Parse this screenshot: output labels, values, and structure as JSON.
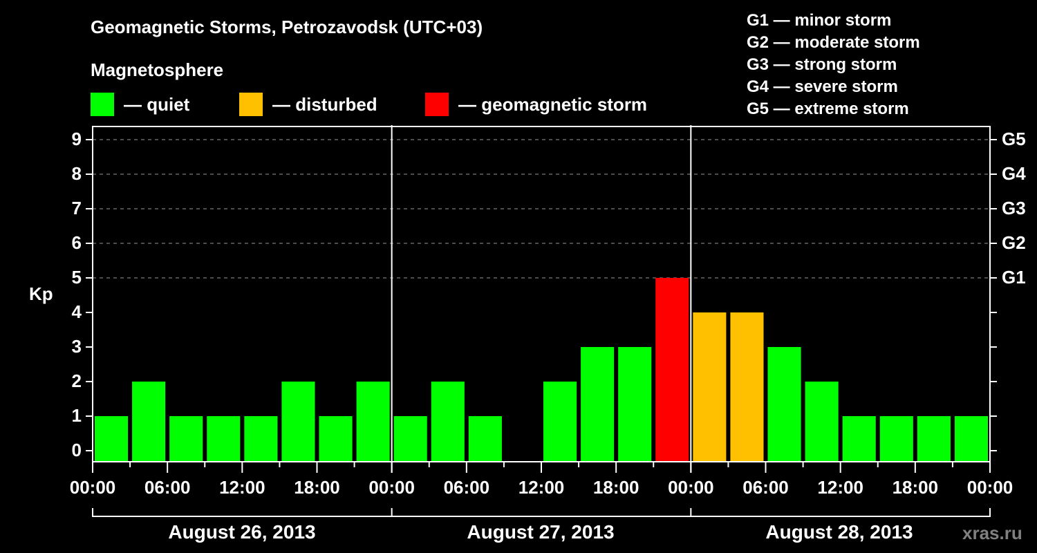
{
  "header": {
    "title": "Geomagnetic Storms, Petrozavodsk (UTC+03)",
    "subtitle": "Magnetosphere"
  },
  "legend": {
    "items": [
      {
        "label": "— quiet",
        "color": "#00ff00"
      },
      {
        "label": "— disturbed",
        "color": "#ffc000"
      },
      {
        "label": "— geomagnetic storm",
        "color": "#ff0000"
      }
    ]
  },
  "storm_scale": {
    "items": [
      "G1 — minor storm",
      "G2 — moderate storm",
      "G3 — strong storm",
      "G4 — severe storm",
      "G5 — extreme storm"
    ]
  },
  "watermark": "xras.ru",
  "chart_data": {
    "type": "bar",
    "title": "Geomagnetic Storms, Petrozavodsk (UTC+03)",
    "xlabel": "",
    "ylabel": "Kp",
    "ylim": [
      0,
      9
    ],
    "yticks": [
      "0",
      "1",
      "2",
      "3",
      "4",
      "5",
      "6",
      "7",
      "8",
      "9"
    ],
    "right_axis_labels": [
      {
        "kp": 5,
        "label": "G1"
      },
      {
        "kp": 6,
        "label": "G2"
      },
      {
        "kp": 7,
        "label": "G3"
      },
      {
        "kp": 8,
        "label": "G4"
      },
      {
        "kp": 9,
        "label": "G5"
      }
    ],
    "grid": "dashed horizontal at Kp 5-9",
    "x_tick_labels": [
      "00:00",
      "06:00",
      "12:00",
      "18:00",
      "00:00",
      "06:00",
      "12:00",
      "18:00",
      "00:00",
      "06:00",
      "12:00",
      "18:00",
      "00:00"
    ],
    "date_labels": [
      "August 26, 2013",
      "August 27, 2013",
      "August 28, 2013"
    ],
    "interval_hours": 3,
    "categories": [
      "Aug 26 00-03",
      "Aug 26 03-06",
      "Aug 26 06-09",
      "Aug 26 09-12",
      "Aug 26 12-15",
      "Aug 26 15-18",
      "Aug 26 18-21",
      "Aug 26 21-24",
      "Aug 27 00-03",
      "Aug 27 03-06",
      "Aug 27 06-09",
      "Aug 27 09-12",
      "Aug 27 12-15",
      "Aug 27 15-18",
      "Aug 27 18-21",
      "Aug 27 21-24",
      "Aug 28 00-03",
      "Aug 28 03-06",
      "Aug 28 06-09",
      "Aug 28 09-12",
      "Aug 28 12-15",
      "Aug 28 15-18",
      "Aug 28 18-21",
      "Aug 28 21-24"
    ],
    "values": [
      1,
      2,
      1,
      1,
      1,
      2,
      1,
      2,
      1,
      2,
      1,
      0,
      2,
      3,
      3,
      5,
      4,
      4,
      3,
      2,
      1,
      1,
      1,
      1
    ],
    "status": [
      "quiet",
      "quiet",
      "quiet",
      "quiet",
      "quiet",
      "quiet",
      "quiet",
      "quiet",
      "quiet",
      "quiet",
      "quiet",
      "quiet",
      "quiet",
      "quiet",
      "quiet",
      "storm",
      "disturbed",
      "disturbed",
      "quiet",
      "quiet",
      "quiet",
      "quiet",
      "quiet",
      "quiet"
    ],
    "colors": {
      "quiet": "#00ff00",
      "disturbed": "#ffc000",
      "storm": "#ff0000"
    }
  }
}
